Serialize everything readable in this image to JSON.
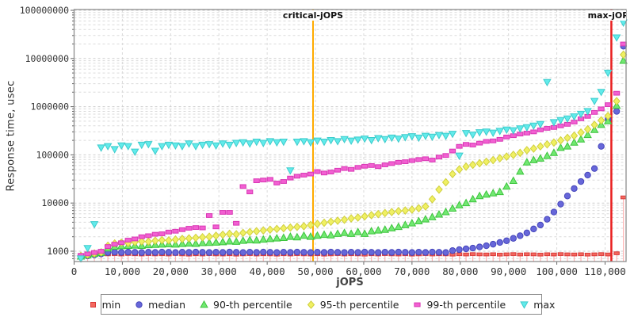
{
  "figure": {
    "background": "#ffffff",
    "plot_border_color": "#8d8d8d",
    "grid_color": "#dadada",
    "tick_color": "#666666"
  },
  "chart_data": {
    "type": "scatter",
    "title": "",
    "xlabel": "jOPS",
    "ylabel": "Response time, usec",
    "legend_position": "bottom-center",
    "grid": true,
    "x_axis": {
      "min": 0,
      "max": 114600,
      "tick_values": [
        0,
        10000,
        20000,
        30000,
        40000,
        50000,
        60000,
        70000,
        80000,
        90000,
        100000,
        110000
      ],
      "tick_labels": [
        "0",
        "10,000",
        "20,000",
        "30,000",
        "40,000",
        "50,000",
        "60,000",
        "70,000",
        "80,000",
        "90,000",
        "100,000",
        "110,000"
      ]
    },
    "y_axis": {
      "scale": "log",
      "min": 610,
      "max": 104000000,
      "tick_values": [
        1000,
        10000,
        100000,
        1000000,
        10000000,
        100000000
      ],
      "tick_labels": [
        "1000",
        "10000",
        "100000",
        "1000000",
        "10000000",
        "100000000"
      ]
    },
    "reference_lines": [
      {
        "name": "critical-jops-line",
        "label": "critical-jOPS",
        "x": 49500,
        "color": "#ffab00"
      },
      {
        "name": "max-jops-line",
        "label": "max-jOPS",
        "x": 111300,
        "color": "#e91f1f"
      }
    ],
    "x_start": 1400,
    "x_step": 1400,
    "series": [
      {
        "name": "min",
        "marker": "min-square",
        "color": "#f4695f",
        "edge": "#d93838",
        "stem_color": "#ffb3b3",
        "y": [
          760,
          820,
          850,
          860,
          855,
          865,
          850,
          870,
          860,
          850,
          865,
          855,
          860,
          850,
          870,
          855,
          845,
          860,
          850,
          865,
          855,
          850,
          860,
          845,
          855,
          865,
          850,
          860,
          855,
          845,
          860,
          850,
          865,
          855,
          850,
          860,
          845,
          855,
          865,
          850,
          860,
          855,
          845,
          860,
          850,
          865,
          855,
          850,
          860,
          845,
          855,
          865,
          850,
          860,
          855,
          845,
          860,
          850,
          865,
          855,
          850,
          860,
          845,
          855,
          865,
          850,
          860,
          855,
          845,
          860,
          850,
          865,
          855,
          850,
          860,
          845,
          855,
          865,
          850
        ],
        "extra": [
          [
            112400,
            900
          ],
          [
            113800,
            13000
          ]
        ]
      },
      {
        "name": "median",
        "marker": "circle",
        "color": "#6767d9",
        "edge": "#4646bb",
        "y": [
          760,
          800,
          840,
          880,
          940,
          955,
          945,
          960,
          950,
          940,
          955,
          945,
          960,
          950,
          940,
          955,
          945,
          960,
          950,
          940,
          955,
          945,
          960,
          950,
          940,
          955,
          945,
          960,
          950,
          940,
          955,
          945,
          960,
          950,
          940,
          955,
          945,
          960,
          950,
          940,
          955,
          945,
          960,
          950,
          940,
          955,
          945,
          960,
          950,
          940,
          955,
          945,
          960,
          950,
          940,
          1030,
          1080,
          1120,
          1160,
          1230,
          1300,
          1400,
          1520,
          1650,
          1850,
          2100,
          2400,
          2900,
          3500,
          4600,
          6500,
          9500,
          14000,
          20000,
          28000,
          38000,
          52000,
          150000,
          550000
        ],
        "extra": [
          [
            112400,
            800000
          ],
          [
            113800,
            18000000
          ]
        ]
      },
      {
        "name": "90-th percentile",
        "marker": "triangle-up",
        "color": "#71e871",
        "edge": "#3dc43d",
        "y": [
          780,
          830,
          880,
          930,
          1150,
          1250,
          1280,
          1300,
          1320,
          1300,
          1340,
          1360,
          1380,
          1400,
          1380,
          1420,
          1450,
          1430,
          1480,
          1500,
          1520,
          1550,
          1600,
          1580,
          1650,
          1700,
          1680,
          1750,
          1800,
          1850,
          1900,
          2000,
          1950,
          2100,
          2000,
          2100,
          2200,
          2150,
          2300,
          2400,
          2300,
          2500,
          2300,
          2600,
          2700,
          2800,
          3000,
          3200,
          3500,
          3800,
          4200,
          4600,
          5100,
          5800,
          6500,
          7700,
          9000,
          10000,
          12000,
          14000,
          15000,
          16000,
          17000,
          22000,
          29000,
          45000,
          70000,
          78000,
          84000,
          95000,
          110000,
          140000,
          150000,
          180000,
          210000,
          260000,
          330000,
          420000,
          500000
        ],
        "extra": [
          [
            112400,
            1050000
          ],
          [
            113800,
            9000000
          ]
        ]
      },
      {
        "name": "95-th percentile",
        "marker": "diamond",
        "color": "#f0f063",
        "edge": "#cfcf3e",
        "y": [
          800,
          850,
          900,
          950,
          1300,
          1450,
          1500,
          1480,
          1550,
          1600,
          1580,
          1650,
          1700,
          1680,
          1750,
          1800,
          1850,
          1900,
          1950,
          2000,
          2100,
          2200,
          2300,
          2250,
          2400,
          2500,
          2600,
          2700,
          2800,
          2900,
          3000,
          3100,
          3200,
          3300,
          3500,
          3700,
          3900,
          4100,
          4300,
          4500,
          4800,
          5000,
          5300,
          5600,
          5900,
          6200,
          6500,
          6800,
          7000,
          7300,
          7800,
          8500,
          12000,
          19000,
          27000,
          40000,
          50000,
          57000,
          62000,
          67000,
          72000,
          78000,
          85000,
          92000,
          100000,
          110000,
          125000,
          135000,
          150000,
          165000,
          180000,
          200000,
          225000,
          250000,
          290000,
          340000,
          420000,
          520000,
          640000
        ],
        "extra": [
          [
            112400,
            1300000
          ],
          [
            113800,
            12000000
          ]
        ]
      },
      {
        "name": "99-th percentile",
        "marker": "wide-square",
        "color": "#f260d2",
        "edge": "#d936b4",
        "y": [
          820,
          880,
          940,
          1000,
          1250,
          1400,
          1500,
          1700,
          1800,
          2000,
          2100,
          2250,
          2300,
          2500,
          2600,
          2800,
          3000,
          3100,
          3050,
          5500,
          3200,
          6400,
          6400,
          3800,
          22000,
          17000,
          29000,
          30000,
          31000,
          26000,
          28000,
          33000,
          36000,
          38000,
          40000,
          45000,
          42000,
          44000,
          48000,
          52000,
          50000,
          55000,
          58000,
          60000,
          57000,
          62000,
          66000,
          70000,
          72000,
          76000,
          80000,
          83000,
          78000,
          90000,
          97000,
          120000,
          150000,
          165000,
          160000,
          175000,
          190000,
          195000,
          210000,
          235000,
          250000,
          270000,
          283000,
          300000,
          330000,
          355000,
          370000,
          400000,
          430000,
          480000,
          560000,
          630000,
          760000,
          900000,
          1100000
        ],
        "extra": [
          [
            112400,
            1900000
          ],
          [
            113800,
            20000000
          ]
        ]
      },
      {
        "name": "max",
        "marker": "triangle-down",
        "color": "#62ebeb",
        "edge": "#3ecccc",
        "y": [
          700,
          1150,
          3600,
          140000,
          150000,
          130000,
          155000,
          150000,
          115000,
          160000,
          165000,
          120000,
          150000,
          160000,
          155000,
          150000,
          170000,
          150000,
          160000,
          165000,
          155000,
          170000,
          160000,
          175000,
          180000,
          170000,
          185000,
          175000,
          190000,
          180000,
          185000,
          47000,
          185000,
          190000,
          180000,
          195000,
          185000,
          200000,
          190000,
          210000,
          195000,
          205000,
          215000,
          200000,
          220000,
          210000,
          225000,
          215000,
          230000,
          240000,
          225000,
          245000,
          235000,
          255000,
          245000,
          270000,
          95000,
          280000,
          260000,
          290000,
          300000,
          285000,
          310000,
          330000,
          320000,
          350000,
          370000,
          400000,
          430000,
          3200000,
          470000,
          520000,
          560000,
          620000,
          700000,
          800000,
          1300000,
          2000000,
          5000000
        ],
        "extra": [
          [
            112400,
            27000000
          ],
          [
            113800,
            55000000
          ]
        ]
      }
    ]
  }
}
